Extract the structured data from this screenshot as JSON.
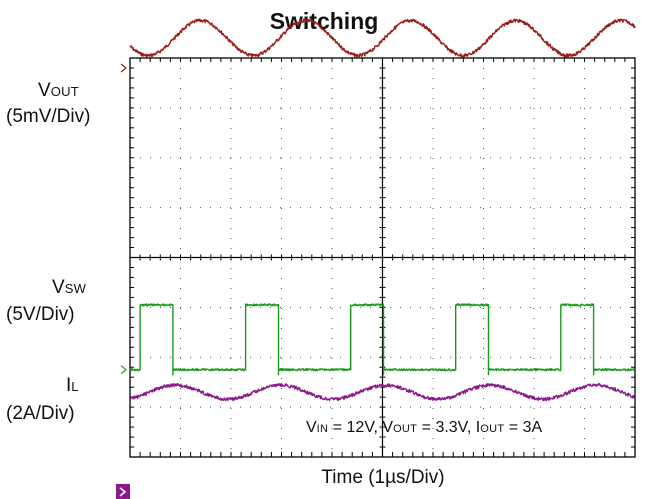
{
  "chart_data": {
    "type": "line",
    "title": "Switching",
    "xlabel": "Time (1µs/Div)",
    "x_unit": "µs",
    "x_range": [
      0,
      10
    ],
    "grid": true,
    "annotation": {
      "vin_main": "V",
      "vin_sub": "IN",
      "vin_val": " = 12V, ",
      "vout_main": "V",
      "vout_sub": "OUT",
      "vout_val": " = 3.3V, ",
      "iout_main": "I",
      "iout_sub": "OUT",
      "iout_val": " = 3A"
    },
    "series": [
      {
        "name": "VOUT",
        "label_main": "V",
        "label_sub": "OUT",
        "scale": "(5mV/Div)",
        "color": "#9b1b1b",
        "waveform": "ripple",
        "period_us": 2.08,
        "first_peak_us": 1.4,
        "amplitude_div": 0.35,
        "level_div": 0.6
      },
      {
        "name": "VSW",
        "label_main": "V",
        "label_sub": "SW",
        "scale": "(5V/Div)",
        "color": "#1a9a1a",
        "waveform": "square",
        "period_us": 2.08,
        "first_rise_us": 0.2,
        "on_time_us": 0.65,
        "high_div": 1.3,
        "low_div": 0
      },
      {
        "name": "IL",
        "label_main": "I",
        "label_sub": "L",
        "scale": "(2A/Div)",
        "color": "#8a1a8a",
        "waveform": "ripple",
        "period_us": 2.08,
        "first_peak_us": 0.9,
        "amplitude_div": 0.14,
        "level_div": 2.0
      }
    ]
  }
}
